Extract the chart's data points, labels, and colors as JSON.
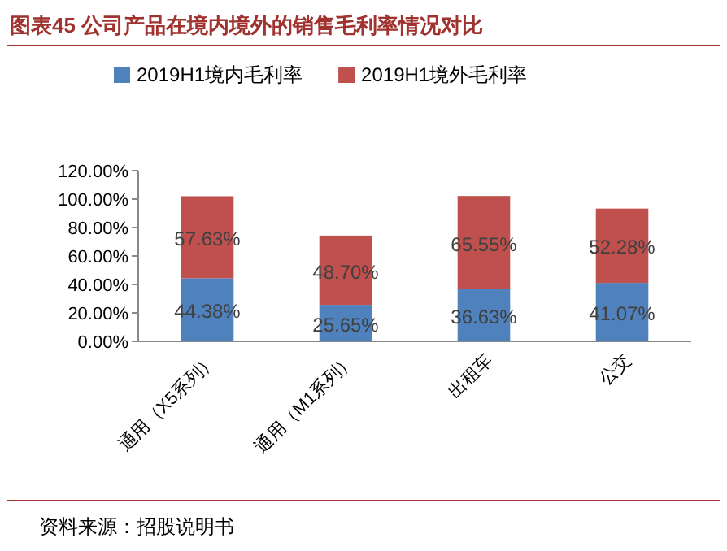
{
  "chart_data": {
    "type": "bar",
    "stacked": true,
    "title": "图表45  公司产品在境内境外的销售毛利率情况对比",
    "categories": [
      "通用（X5系列）",
      "通用（M1系列）",
      "出租车",
      "公交"
    ],
    "series": [
      {
        "name": "2019H1境内毛利率",
        "color": "#4f81bd",
        "values": [
          44.38,
          25.65,
          36.63,
          41.07
        ],
        "value_labels": [
          "44.38%",
          "25.65%",
          "36.63%",
          "41.07%"
        ]
      },
      {
        "name": "2019H1境外毛利率",
        "color": "#c0504d",
        "values": [
          57.63,
          48.7,
          65.55,
          52.28
        ],
        "value_labels": [
          "57.63%",
          "48.70%",
          "65.55%",
          "52.28%"
        ]
      }
    ],
    "ylim": [
      0,
      120
    ],
    "yticks": [
      {
        "value": 0,
        "label": "0.00%"
      },
      {
        "value": 20,
        "label": "20.00%"
      },
      {
        "value": 40,
        "label": "40.00%"
      },
      {
        "value": 60,
        "label": "60.00%"
      },
      {
        "value": 80,
        "label": "80.00%"
      },
      {
        "value": 100,
        "label": "100.00%"
      },
      {
        "value": 120,
        "label": "120.00%"
      }
    ],
    "legend": "top",
    "grid": false,
    "annotations": [
      "资料来源：招股说明书"
    ]
  }
}
